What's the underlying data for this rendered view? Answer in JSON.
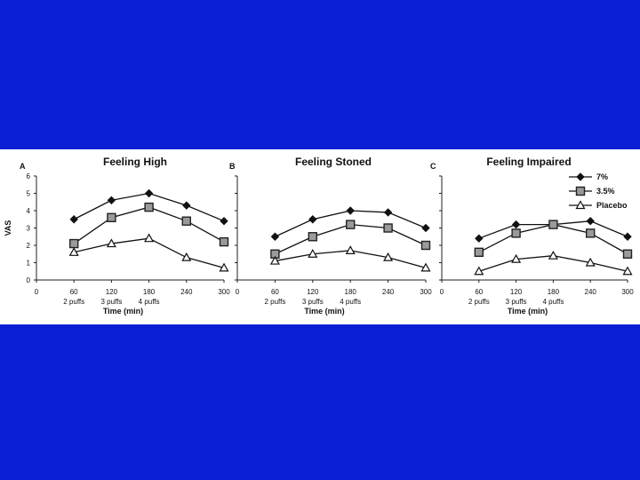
{
  "slide": {
    "background_color": "#0a1ed6",
    "figure_background": "#ffffff"
  },
  "chart_data": [
    {
      "type": "line",
      "panel": "A",
      "title": "Feeling High",
      "xlabel": "Time (min)",
      "ylabel": "VAS",
      "x": [
        60,
        120,
        180,
        240,
        300
      ],
      "xticks": [
        0,
        60,
        120,
        180,
        240,
        300
      ],
      "yticks": [
        0,
        1,
        2,
        3,
        4,
        5,
        6
      ],
      "xlim": [
        0,
        300
      ],
      "ylim": [
        0,
        6
      ],
      "dose_labels": [
        "2 puffs",
        "3 puffs",
        "4 puffs"
      ],
      "series": [
        {
          "name": "7%",
          "marker": "diamond",
          "values": [
            3.5,
            4.6,
            5.0,
            4.3,
            3.4
          ]
        },
        {
          "name": "3.5%",
          "marker": "square",
          "values": [
            2.1,
            3.6,
            4.2,
            3.4,
            2.2
          ]
        },
        {
          "name": "Placebo",
          "marker": "triangle",
          "values": [
            1.6,
            2.1,
            2.4,
            1.3,
            0.7
          ]
        }
      ]
    },
    {
      "type": "line",
      "panel": "B",
      "title": "Feeling Stoned",
      "xlabel": "Time (min)",
      "ylabel": "",
      "x": [
        60,
        120,
        180,
        240,
        300
      ],
      "xticks": [
        0,
        60,
        120,
        180,
        240,
        300
      ],
      "yticks": [],
      "xlim": [
        0,
        300
      ],
      "ylim": [
        0,
        6
      ],
      "dose_labels": [
        "2 puffs",
        "3 puffs",
        "4 puffs"
      ],
      "series": [
        {
          "name": "7%",
          "marker": "diamond",
          "values": [
            2.5,
            3.5,
            4.0,
            3.9,
            3.0
          ]
        },
        {
          "name": "3.5%",
          "marker": "square",
          "values": [
            1.5,
            2.5,
            3.2,
            3.0,
            2.0
          ]
        },
        {
          "name": "Placebo",
          "marker": "triangle",
          "values": [
            1.1,
            1.5,
            1.7,
            1.3,
            0.7
          ]
        }
      ]
    },
    {
      "type": "line",
      "panel": "C",
      "title": "Feeling Impaired",
      "xlabel": "Time (min)",
      "ylabel": "",
      "x": [
        60,
        120,
        180,
        240,
        300
      ],
      "xticks": [
        0,
        60,
        120,
        180,
        240,
        300
      ],
      "yticks": [],
      "xlim": [
        0,
        300
      ],
      "ylim": [
        0,
        6
      ],
      "dose_labels": [
        "2 puffs",
        "3 puffs",
        "4 puffs"
      ],
      "legend": {
        "placement": "top-right",
        "entries": [
          "7%",
          "3.5%",
          "Placebo"
        ]
      },
      "series": [
        {
          "name": "7%",
          "marker": "diamond",
          "values": [
            2.4,
            3.2,
            3.2,
            3.4,
            2.5
          ]
        },
        {
          "name": "3.5%",
          "marker": "square",
          "values": [
            1.6,
            2.7,
            3.2,
            2.7,
            1.5
          ]
        },
        {
          "name": "Placebo",
          "marker": "triangle",
          "values": [
            0.5,
            1.2,
            1.4,
            1.0,
            0.5
          ]
        }
      ]
    }
  ]
}
